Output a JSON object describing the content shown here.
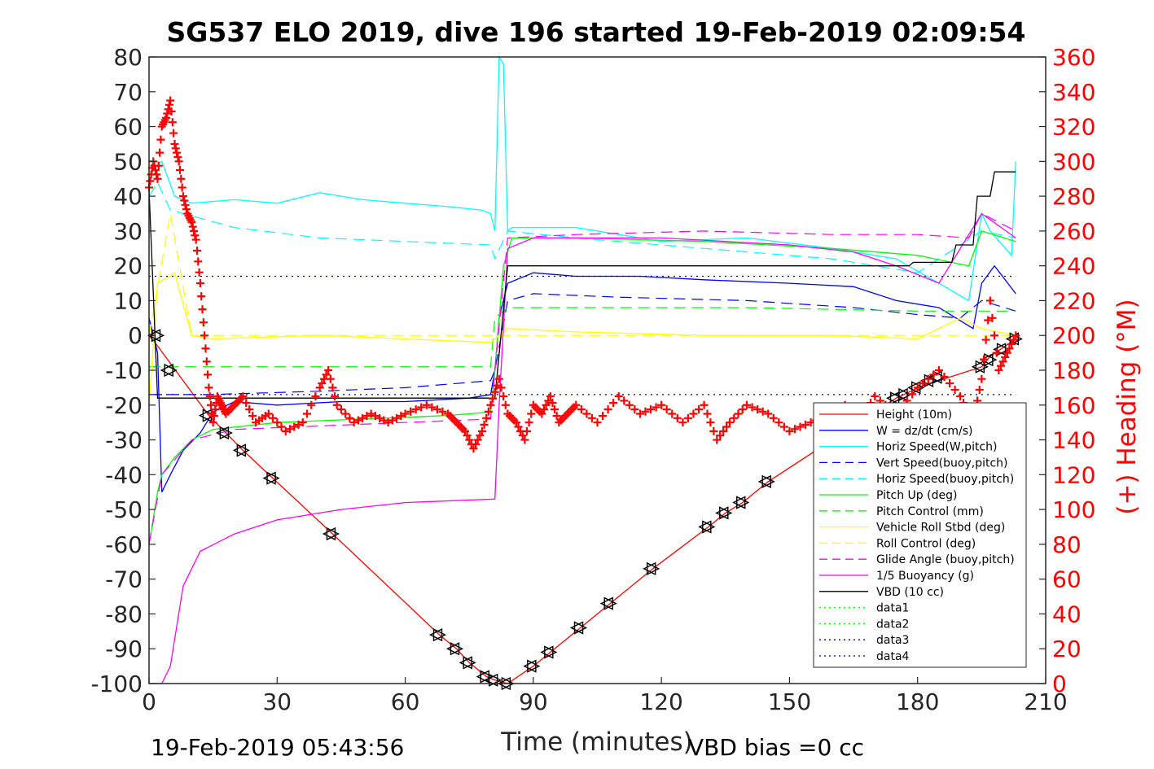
{
  "chart_data": {
    "type": "line",
    "title": "SG537 ELO 2019, dive 196 started 19-Feb-2019 02:09:54",
    "xlabel": "Time (minutes)",
    "ylabel": "",
    "y2label": "(+) Heading (°M)",
    "xlim": [
      0,
      210
    ],
    "ylim": [
      -100,
      80
    ],
    "y2lim": [
      0,
      360
    ],
    "xticks": [
      "0",
      "30",
      "60",
      "90",
      "120",
      "150",
      "180",
      "210"
    ],
    "yticks": [
      "80",
      "70",
      "60",
      "50",
      "40",
      "30",
      "20",
      "10",
      "0",
      "-10",
      "-20",
      "-30",
      "-40",
      "-50",
      "-60",
      "-70",
      "-80",
      "-90",
      "-100"
    ],
    "y2ticks": [
      "360",
      "340",
      "320",
      "300",
      "280",
      "260",
      "240",
      "220",
      "200",
      "180",
      "160",
      "140",
      "120",
      "100",
      "80",
      "60",
      "40",
      "20",
      "0"
    ],
    "footer_left": "19-Feb-2019 05:43:56",
    "footer_right": "VBD bias =0 cc",
    "legend_placement": "lower-right",
    "series": [
      {
        "name": "Height (10m)",
        "color": "#ff0000",
        "style": "solid",
        "x": [
          0,
          2,
          14,
          18,
          22,
          29,
          43,
          68,
          72,
          75,
          79,
          81,
          84,
          90,
          94,
          101,
          108,
          118,
          131,
          135,
          139,
          145,
          165,
          175,
          182,
          185,
          195,
          197,
          203
        ],
        "y": [
          0,
          -3,
          -23,
          -28,
          -33,
          -41,
          -57,
          -86,
          -90,
          -94,
          -98,
          -99,
          -100,
          -95,
          -91,
          -84,
          -77,
          -67,
          -55,
          -51,
          -48,
          -42,
          -26,
          -18,
          -14,
          -13,
          -9,
          -6,
          -1
        ]
      },
      {
        "name": "W = dz/dt (cm/s)",
        "color": "#0000ff",
        "style": "solid",
        "x": [
          0,
          2,
          3,
          5,
          8,
          12,
          15,
          20,
          30,
          45,
          60,
          75,
          80,
          81,
          82,
          84,
          90,
          100,
          115,
          130,
          150,
          165,
          175,
          185,
          193,
          195,
          198,
          203
        ],
        "y": [
          5,
          -5,
          -45,
          -40,
          -33,
          -28,
          -22,
          -19,
          -20,
          -19,
          -19,
          -18,
          -17,
          -10,
          5,
          15,
          18,
          17,
          17,
          16,
          15,
          14,
          10,
          8,
          2,
          15,
          20,
          12
        ]
      },
      {
        "name": "Horiz Speed(W,pitch)",
        "color": "#00ffff",
        "style": "solid",
        "x": [
          0,
          1,
          3,
          6,
          10,
          20,
          30,
          40,
          50,
          60,
          70,
          78,
          80,
          81,
          82,
          83,
          84,
          85,
          90,
          100,
          120,
          140,
          160,
          175,
          185,
          192,
          195,
          197,
          202,
          203
        ],
        "y": [
          42,
          48,
          50,
          40,
          38,
          39,
          38,
          41,
          39,
          38,
          37,
          36,
          35,
          30,
          80,
          78,
          30,
          31,
          31,
          31,
          27,
          28,
          25,
          22,
          15,
          10,
          35,
          30,
          23,
          50
        ]
      },
      {
        "name": "Vert Speed(buoy,pitch)",
        "color": "#0000ff",
        "style": "dashed",
        "x": [
          0,
          14,
          40,
          60,
          80,
          81,
          84,
          90,
          110,
          140,
          165,
          180,
          190,
          195,
          203
        ],
        "y": [
          -17,
          -17,
          -16,
          -15,
          -13,
          -10,
          10,
          12,
          11,
          10,
          8,
          6,
          5,
          10,
          7
        ]
      },
      {
        "name": "Horiz Speed(buoy,pitch)",
        "color": "#00ffff",
        "style": "dashed",
        "x": [
          0,
          2,
          5,
          20,
          40,
          60,
          80,
          81,
          84,
          100,
          130,
          160,
          180,
          195,
          203
        ],
        "y": [
          40,
          44,
          36,
          31,
          28,
          27,
          26,
          22,
          30,
          28,
          25,
          22,
          18,
          30,
          28
        ]
      },
      {
        "name": "Pitch Up (deg)",
        "color": "#00ff00",
        "style": "solid",
        "x": [
          0,
          2,
          3,
          6,
          10,
          15,
          30,
          50,
          70,
          80,
          81,
          83,
          85,
          100,
          130,
          160,
          180,
          192,
          195,
          203
        ],
        "y": [
          -60,
          -45,
          -40,
          -35,
          -30,
          -27,
          -25,
          -24,
          -23,
          -22,
          -10,
          20,
          28,
          28,
          27,
          25,
          23,
          20,
          30,
          27
        ]
      },
      {
        "name": "Pitch Control (mm)",
        "color": "#00ff00",
        "style": "dashed",
        "x": [
          0,
          14,
          40,
          80,
          81,
          84,
          100,
          140,
          180,
          203
        ],
        "y": [
          -9,
          -9,
          -9,
          -9,
          5,
          8,
          8,
          8,
          7,
          7
        ]
      },
      {
        "name": "Vehicle Roll Stbd (deg)",
        "color": "#ffff00",
        "style": "solid",
        "x": [
          0,
          2,
          6,
          10,
          15,
          40,
          60,
          80,
          81,
          84,
          100,
          130,
          160,
          180,
          190,
          195,
          203
        ],
        "y": [
          -20,
          15,
          18,
          0,
          -1,
          0,
          -1,
          -2,
          -1,
          2,
          1,
          0,
          0,
          -1,
          5,
          2,
          0
        ]
      },
      {
        "name": "Roll Control (deg)",
        "color": "#ffff00",
        "style": "dashed",
        "x": [
          0,
          5,
          10,
          15,
          80,
          81,
          84,
          120,
          180,
          203
        ],
        "y": [
          0,
          35,
          0,
          0,
          0,
          0,
          0,
          0,
          0,
          0
        ]
      },
      {
        "name": "Glide Angle (buoy,pitch)",
        "color": "#ff00ff",
        "style": "dashed",
        "x": [
          0,
          3,
          10,
          20,
          40,
          60,
          80,
          81,
          84,
          100,
          130,
          160,
          180,
          192,
          195,
          203
        ],
        "y": [
          -60,
          -40,
          -30,
          -27,
          -26,
          -25,
          -24,
          -10,
          28,
          29,
          30,
          29,
          29,
          28,
          35,
          30
        ]
      },
      {
        "name": "1/5 Buoyancy (g)",
        "color": "#ff00ff",
        "style": "solid",
        "x": [
          0,
          3,
          5,
          8,
          12,
          20,
          30,
          45,
          60,
          81,
          82,
          84,
          90,
          120,
          150,
          165,
          175,
          185,
          195,
          203
        ],
        "y": [
          -100,
          -100,
          -95,
          -72,
          -62,
          -57,
          -53,
          -50,
          -48,
          -47,
          -20,
          25,
          28,
          28,
          26,
          24,
          20,
          15,
          35,
          28
        ]
      },
      {
        "name": "VBD (10 cc)",
        "color": "#000000",
        "style": "solid",
        "x": [
          0,
          2,
          81,
          84,
          178,
          179,
          188,
          189,
          193,
          194,
          197,
          198,
          203
        ],
        "y": [
          42,
          -18,
          -18,
          20,
          20,
          21,
          21,
          26,
          26,
          40,
          40,
          47,
          47
        ]
      },
      {
        "name": "data1",
        "color": "#00ff00",
        "style": "dotted",
        "x": [],
        "y": []
      },
      {
        "name": "data2",
        "color": "#00ff00",
        "style": "dotted",
        "x": [],
        "y": []
      },
      {
        "name": "data3",
        "color": "#000080",
        "style": "dotted",
        "x": [
          0,
          203
        ],
        "y": [
          -17,
          -17
        ]
      },
      {
        "name": "data4",
        "color": "#000080",
        "style": "dotted",
        "x": [
          0,
          203
        ],
        "y": [
          17,
          17
        ]
      }
    ],
    "heading_series": {
      "axis": "right",
      "color": "#ff0000",
      "marker": "+",
      "x": [
        0,
        1,
        2,
        3,
        4,
        5,
        6,
        7,
        8,
        9,
        10,
        11,
        12,
        13,
        14,
        15,
        16,
        17,
        18,
        20,
        22,
        25,
        28,
        32,
        36,
        40,
        42,
        44,
        48,
        52,
        56,
        60,
        65,
        70,
        72,
        74,
        76,
        78,
        80,
        82,
        84,
        86,
        88,
        90,
        92,
        94,
        96,
        98,
        100,
        105,
        110,
        115,
        120,
        125,
        130,
        133,
        136,
        140,
        145,
        150,
        155,
        160,
        163,
        166,
        170,
        175,
        180,
        185,
        190,
        193,
        195,
        197,
        199,
        201,
        203
      ],
      "y": [
        285,
        300,
        290,
        320,
        325,
        335,
        310,
        300,
        280,
        270,
        265,
        255,
        230,
        200,
        170,
        150,
        165,
        160,
        155,
        160,
        165,
        150,
        155,
        145,
        150,
        170,
        180,
        160,
        150,
        155,
        150,
        155,
        160,
        155,
        150,
        145,
        135,
        145,
        160,
        175,
        155,
        150,
        140,
        160,
        155,
        165,
        150,
        155,
        160,
        150,
        165,
        155,
        160,
        150,
        160,
        140,
        150,
        160,
        155,
        145,
        150,
        155,
        160,
        150,
        165,
        155,
        170,
        180,
        165,
        150,
        175,
        220,
        180,
        190,
        200
      ]
    },
    "markers": {
      "symbol": "triangle-pairs",
      "color": "#000000",
      "x": [
        2,
        5,
        14,
        18,
        22,
        29,
        43,
        68,
        72,
        75,
        79,
        81,
        84,
        90,
        94,
        101,
        108,
        118,
        131,
        135,
        139,
        145,
        175,
        177,
        180,
        183,
        185,
        195,
        197,
        200,
        203
      ],
      "y": [
        0,
        -10,
        -23,
        -28,
        -33,
        -41,
        -57,
        -86,
        -90,
        -94,
        -98,
        -99,
        -100,
        -95,
        -91,
        -84,
        -77,
        -67,
        -55,
        -51,
        -48,
        -42,
        -18,
        -17,
        -15,
        -13,
        -12,
        -9,
        -7,
        -4,
        -1
      ]
    }
  }
}
